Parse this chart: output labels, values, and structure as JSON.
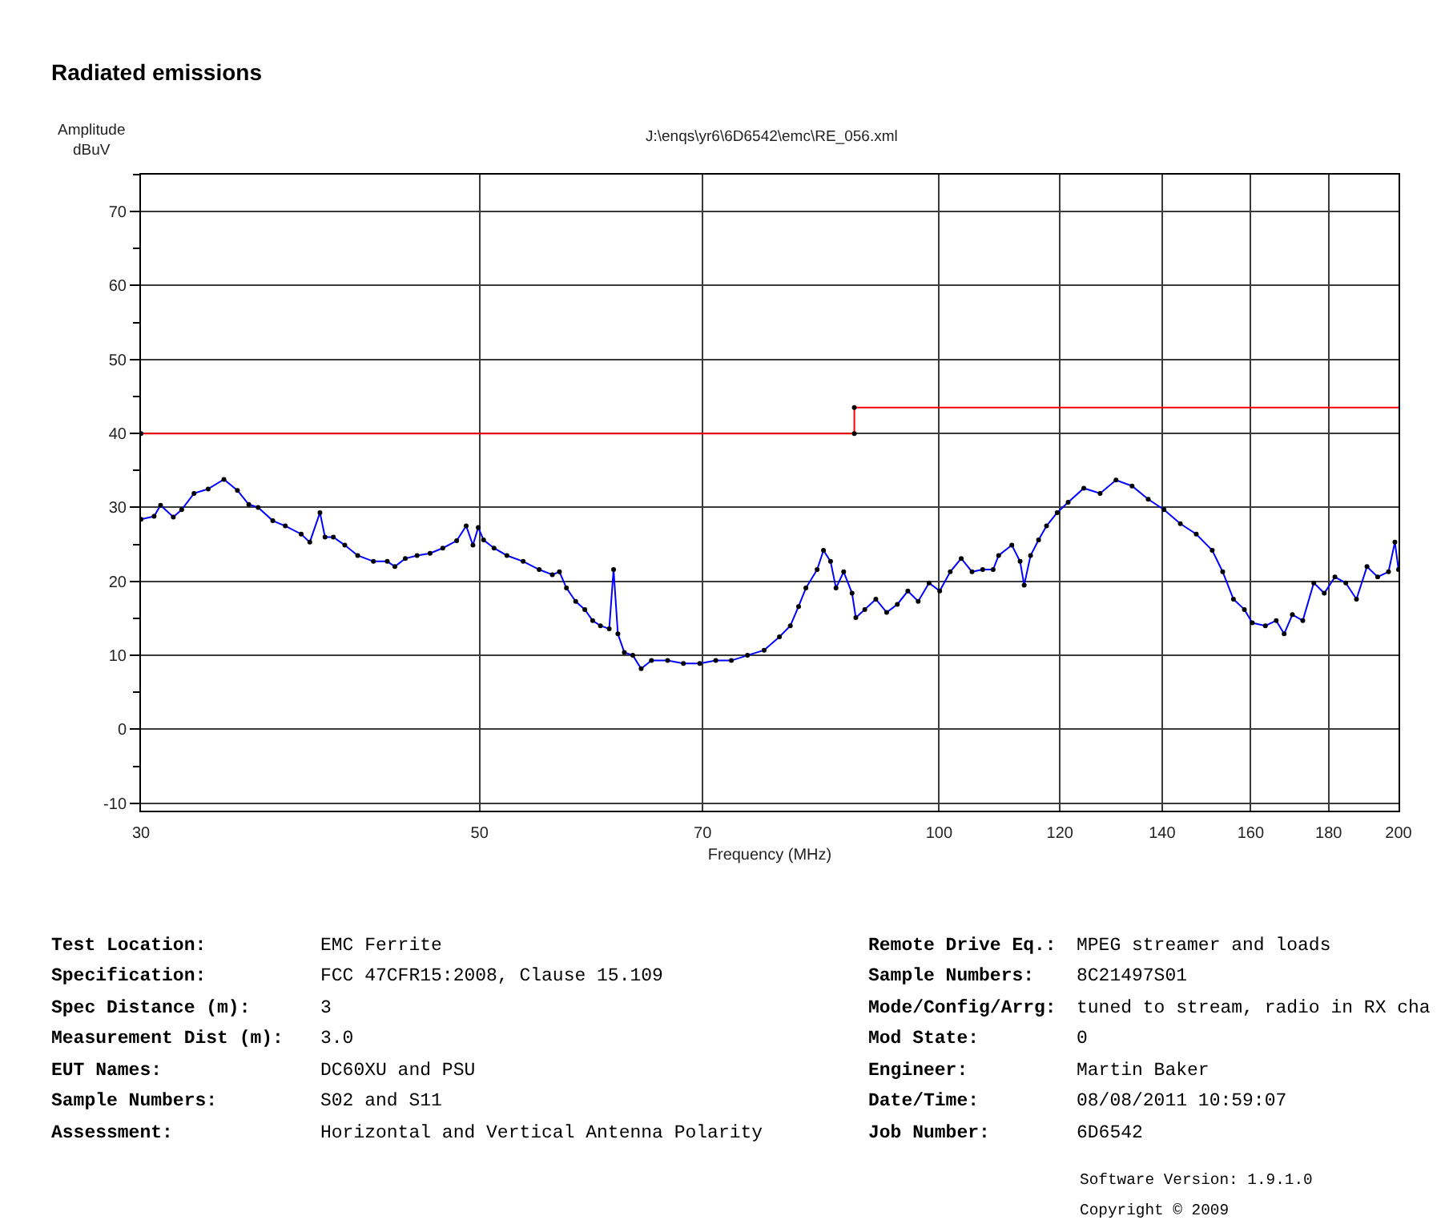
{
  "chart_data": {
    "type": "line",
    "title": "Radiated emissions",
    "subtitle": "J:\\enqs\\yr6\\6D6542\\emc\\RE_056.xml",
    "xlabel": "Frequency (MHz)",
    "ylabel": "Amplitude\ndBuV",
    "log": "x",
    "xlim": [
      30,
      200
    ],
    "xticks": [
      30,
      50,
      70,
      100,
      120,
      140,
      160,
      180,
      200
    ],
    "ylim": [
      -11,
      75
    ],
    "yticks": [
      -10,
      {
        "value": -5,
        "label": null
      },
      0,
      {
        "value": 5,
        "label": null
      },
      10,
      {
        "value": 15,
        "label": null
      },
      20,
      {
        "value": 25,
        "label": null
      },
      30,
      {
        "value": 35,
        "label": null
      },
      40,
      {
        "value": 45,
        "label": null
      },
      50,
      {
        "value": 55,
        "label": null
      },
      60,
      {
        "value": 65,
        "label": null
      },
      70,
      {
        "value": 75,
        "label": null
      }
    ],
    "grid": true,
    "series": [
      {
        "type": "step",
        "color": "#ff0000",
        "x": [
          30,
          88,
          200
        ],
        "values": [
          40,
          43.5,
          43.5
        ]
      },
      {
        "type": "scatter",
        "marker": "circle",
        "color": "#000000",
        "x": [
          30,
          88,
          88
        ],
        "values": [
          40,
          40,
          43.5
        ]
      },
      {
        "color": "#0000ff",
        "x": [
          30.0,
          30.6,
          30.9,
          31.5,
          31.9,
          32.5,
          33.2,
          34.0,
          34.7,
          35.3,
          35.8,
          36.6,
          37.3,
          38.2,
          38.7,
          39.3,
          39.6,
          40.1,
          40.8,
          41.6,
          42.6,
          43.5,
          44.0,
          44.7,
          45.5,
          46.4,
          47.3,
          48.3,
          49.0,
          49.5,
          49.9,
          50.3,
          51.1,
          52.1,
          53.4,
          54.7,
          55.8,
          56.4,
          57.0,
          57.8,
          58.6,
          59.3,
          60.0,
          60.8,
          61.2,
          61.6,
          62.2,
          63.0,
          63.8,
          64.8,
          66.4,
          68.0,
          69.7,
          71.4,
          73.1,
          74.9,
          76.8,
          78.6,
          79.9,
          80.9,
          81.8,
          83.2,
          84.0,
          84.9,
          85.6,
          86.6,
          87.7,
          88.2,
          89.4,
          90.9,
          92.4,
          93.9,
          95.4,
          96.9,
          98.5,
          100.1,
          101.7,
          103.4,
          105.1,
          106.8,
          108.5,
          109.4,
          111.6,
          113.0,
          113.7,
          114.8,
          116.2,
          117.6,
          119.5,
          121.5,
          124.4,
          127.5,
          130.6,
          133.8,
          137.1,
          140.4,
          143.9,
          147.4,
          151.0,
          153.4,
          155.9,
          158.5,
          160.4,
          163.6,
          166.3,
          168.3,
          170.4,
          173.1,
          176.0,
          178.8,
          181.7,
          184.7,
          187.7,
          190.7,
          193.8,
          197.0,
          198.9,
          200.0
        ],
        "values": [
          28.4,
          28.8,
          30.3,
          28.7,
          29.7,
          31.9,
          32.5,
          33.8,
          32.3,
          30.4,
          30.0,
          28.2,
          27.5,
          26.4,
          25.3,
          29.3,
          26.0,
          26.0,
          24.9,
          23.5,
          22.7,
          22.7,
          22.0,
          23.1,
          23.5,
          23.8,
          24.5,
          25.5,
          27.5,
          24.9,
          27.3,
          25.6,
          24.5,
          23.5,
          22.7,
          21.6,
          20.9,
          21.3,
          19.1,
          17.3,
          16.2,
          14.7,
          14.0,
          13.6,
          21.6,
          12.9,
          10.4,
          10.0,
          8.2,
          9.3,
          9.3,
          8.9,
          8.9,
          9.3,
          9.3,
          10.0,
          10.7,
          12.5,
          14.0,
          16.6,
          19.1,
          21.6,
          24.2,
          22.7,
          19.1,
          21.3,
          18.4,
          15.1,
          16.2,
          17.6,
          15.8,
          16.9,
          18.7,
          17.3,
          19.8,
          18.7,
          21.3,
          23.1,
          21.3,
          21.6,
          21.6,
          23.5,
          24.9,
          22.7,
          19.5,
          23.5,
          25.6,
          27.5,
          29.3,
          30.7,
          32.6,
          31.9,
          33.7,
          32.9,
          31.1,
          29.7,
          27.8,
          26.4,
          24.2,
          21.3,
          17.6,
          16.2,
          14.4,
          14.0,
          14.7,
          12.9,
          15.5,
          14.7,
          19.8,
          18.4,
          20.6,
          19.8,
          17.6,
          22.0,
          20.6,
          21.3,
          25.3,
          21.6
        ]
      },
      {
        "type": "scatter",
        "marker": "circle",
        "color": "#000000",
        "x": [
          30.0,
          30.6,
          30.9,
          31.5,
          31.9,
          32.5,
          33.2,
          34.0,
          34.7,
          35.3,
          35.8,
          36.6,
          37.3,
          38.2,
          38.7,
          39.3,
          39.6,
          40.1,
          40.8,
          41.6,
          42.6,
          43.5,
          44.0,
          44.7,
          45.5,
          46.4,
          47.3,
          48.3,
          49.0,
          49.5,
          49.9,
          50.3,
          51.1,
          52.1,
          53.4,
          54.7,
          55.8,
          56.4,
          57.0,
          57.8,
          58.6,
          59.3,
          60.0,
          60.8,
          61.2,
          61.6,
          62.2,
          63.0,
          63.8,
          64.8,
          66.4,
          68.0,
          69.7,
          71.4,
          73.1,
          74.9,
          76.8,
          78.6,
          79.9,
          80.9,
          81.8,
          83.2,
          84.0,
          84.9,
          85.6,
          86.6,
          87.7,
          88.2,
          89.4,
          90.9,
          92.4,
          93.9,
          95.4,
          96.9,
          98.5,
          100.1,
          101.7,
          103.4,
          105.1,
          106.8,
          108.5,
          109.4,
          111.6,
          113.0,
          113.7,
          114.8,
          116.2,
          117.6,
          119.5,
          121.5,
          124.4,
          127.5,
          130.6,
          133.8,
          137.1,
          140.4,
          143.9,
          147.4,
          151.0,
          153.4,
          155.9,
          158.5,
          160.4,
          163.6,
          166.3,
          168.3,
          170.4,
          173.1,
          176.0,
          178.8,
          181.7,
          184.7,
          187.7,
          190.7,
          193.8,
          197.0,
          198.9,
          200.0
        ],
        "values": [
          28.4,
          28.8,
          30.3,
          28.7,
          29.7,
          31.9,
          32.5,
          33.8,
          32.3,
          30.4,
          30.0,
          28.2,
          27.5,
          26.4,
          25.3,
          29.3,
          26.0,
          26.0,
          24.9,
          23.5,
          22.7,
          22.7,
          22.0,
          23.1,
          23.5,
          23.8,
          24.5,
          25.5,
          27.5,
          24.9,
          27.3,
          25.6,
          24.5,
          23.5,
          22.7,
          21.6,
          20.9,
          21.3,
          19.1,
          17.3,
          16.2,
          14.7,
          14.0,
          13.6,
          21.6,
          12.9,
          10.4,
          10.0,
          8.2,
          9.3,
          9.3,
          8.9,
          8.9,
          9.3,
          9.3,
          10.0,
          10.7,
          12.5,
          14.0,
          16.6,
          19.1,
          21.6,
          24.2,
          22.7,
          19.1,
          21.3,
          18.4,
          15.1,
          16.2,
          17.6,
          15.8,
          16.9,
          18.7,
          17.3,
          19.8,
          18.7,
          21.3,
          23.1,
          21.3,
          21.6,
          21.6,
          23.5,
          24.9,
          22.7,
          19.5,
          23.5,
          25.6,
          27.5,
          29.3,
          30.7,
          32.6,
          31.9,
          33.7,
          32.9,
          31.1,
          29.7,
          27.8,
          26.4,
          24.2,
          21.3,
          17.6,
          16.2,
          14.4,
          14.0,
          14.7,
          12.9,
          15.5,
          14.7,
          19.8,
          18.4,
          20.6,
          19.8,
          17.6,
          22.0,
          20.6,
          21.3,
          25.3,
          21.6
        ]
      }
    ],
    "annotations": [
      "Test Location:",
      "EMC Ferrite",
      "Specification:",
      "FCC 47CFR15:2008, Clause 15.109",
      "Spec Distance (m):",
      "3",
      "Measurement Dist (m):",
      "3.0",
      "EUT Names:",
      "DC60XU and PSU",
      "Sample Numbers:",
      "S02 and S11",
      "Assessment:",
      "Horizontal and Vertical Antenna Polarity",
      "Remote Drive Eq.:",
      "MPEG streamer and loads",
      "Sample Numbers:",
      "8C21497S01",
      "Mode/Config/Arrg:",
      "tuned to stream, radio in RX cha",
      "Mod State:",
      "0",
      "Engineer:",
      "Martin Baker",
      "Date/Time:",
      "08/08/2011 10:59:07",
      "Job Number:",
      "6D6542",
      "Software Version: 1.9.1.0",
      "Copyright © 2009"
    ]
  }
}
